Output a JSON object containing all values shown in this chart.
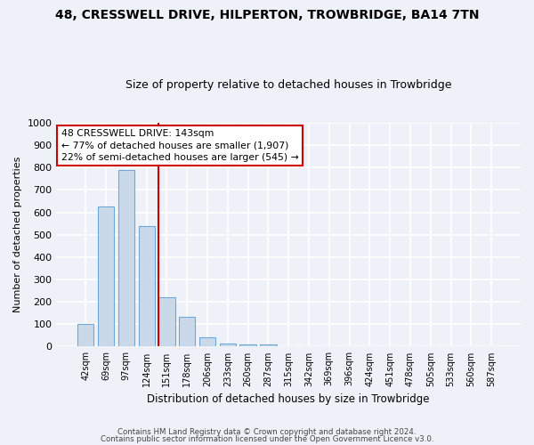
{
  "title": "48, CRESSWELL DRIVE, HILPERTON, TROWBRIDGE, BA14 7TN",
  "subtitle": "Size of property relative to detached houses in Trowbridge",
  "xlabel": "Distribution of detached houses by size in Trowbridge",
  "ylabel": "Number of detached properties",
  "categories": [
    "42sqm",
    "69sqm",
    "97sqm",
    "124sqm",
    "151sqm",
    "178sqm",
    "206sqm",
    "233sqm",
    "260sqm",
    "287sqm",
    "315sqm",
    "342sqm",
    "369sqm",
    "396sqm",
    "424sqm",
    "451sqm",
    "478sqm",
    "505sqm",
    "533sqm",
    "560sqm",
    "587sqm"
  ],
  "values": [
    103,
    625,
    787,
    537,
    220,
    133,
    40,
    15,
    10,
    8,
    0,
    0,
    0,
    0,
    0,
    0,
    0,
    0,
    0,
    0,
    0
  ],
  "bar_color": "#c9d9ea",
  "bar_edge_color": "#6fa8d6",
  "vline_color": "#cc0000",
  "vline_index": 3.6,
  "annotation_text": "48 CRESSWELL DRIVE: 143sqm\n← 77% of detached houses are smaller (1,907)\n22% of semi-detached houses are larger (545) →",
  "annotation_box_color": "#ffffff",
  "annotation_box_edge": "#cc0000",
  "ylim": [
    0,
    1000
  ],
  "yticks": [
    0,
    100,
    200,
    300,
    400,
    500,
    600,
    700,
    800,
    900,
    1000
  ],
  "footer1": "Contains HM Land Registry data © Crown copyright and database right 2024.",
  "footer2": "Contains public sector information licensed under the Open Government Licence v3.0.",
  "background_color": "#eef2f8",
  "grid_color": "#ffffff"
}
